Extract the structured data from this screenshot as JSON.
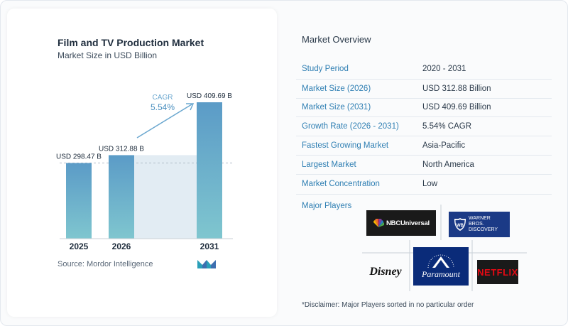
{
  "chart": {
    "title": "Film and TV Production Market",
    "subtitle": "Market Size in USD Billion",
    "source": "Source:  Mordor Intelligence",
    "cagr_label": "CAGR",
    "cagr_value": "5.54%",
    "colors": {
      "bar": "#5b9bc7",
      "bar_bottom": "#7fc6cf",
      "shade": "#e2ecf3",
      "arrow": "#6aa7cf",
      "dashed": "#b0bcc8"
    }
  },
  "chart_data": {
    "type": "bar",
    "categories": [
      "2025",
      "2026",
      "2031"
    ],
    "values": [
      298.47,
      312.88,
      409.69
    ],
    "value_labels": [
      "USD 298.47 B",
      "USD 312.88 B",
      "USD 409.69 B"
    ],
    "title": "Film and TV Production Market",
    "subtitle": "Market Size in USD Billion",
    "xlabel": "",
    "ylabel": "",
    "grid": false,
    "annotation": "CAGR 5.54%"
  },
  "overview": {
    "title": "Market Overview",
    "rows": [
      {
        "key": "Study Period",
        "value": "2020 - 2031"
      },
      {
        "key": "Market Size (2026)",
        "value": "USD 312.88 Billion"
      },
      {
        "key": "Market Size (2031)",
        "value": "USD 409.69 Billion"
      },
      {
        "key": "Growth Rate (2026 - 2031)",
        "value": "5.54% CAGR"
      },
      {
        "key": "Fastest Growing Market",
        "value": "Asia-Pacific"
      },
      {
        "key": "Largest Market",
        "value": "North America"
      },
      {
        "key": "Market Concentration",
        "value": "Low"
      }
    ],
    "players_label": "Major Players",
    "players": [
      "NBCUniversal",
      "WARNER BROS. DISCOVERY",
      "Disney",
      "Paramount",
      "NETFLIX"
    ],
    "disclaimer": "*Disclaimer: Major Players sorted in no particular order"
  }
}
